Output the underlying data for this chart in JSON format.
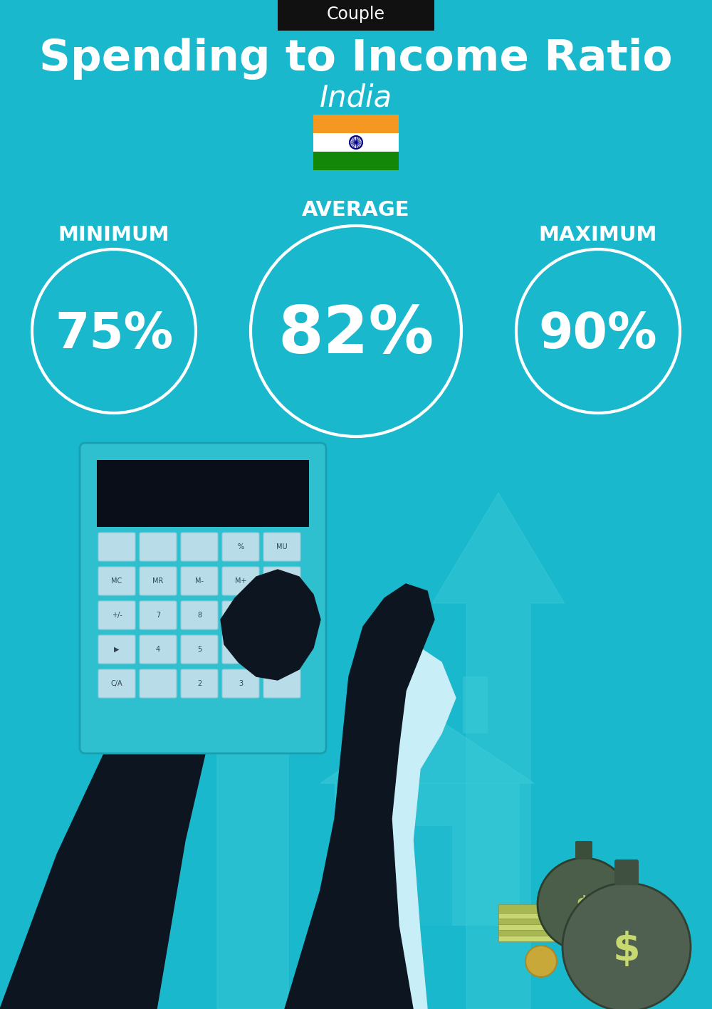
{
  "bg_color": "#1ab8cc",
  "header_bg": "#111111",
  "header_text": "Couple",
  "title": "Spending to Income Ratio",
  "subtitle": "India",
  "min_label": "MINIMUM",
  "avg_label": "AVERAGE",
  "max_label": "MAXIMUM",
  "min_value": "75%",
  "avg_value": "82%",
  "max_value": "90%",
  "circle_color": "#ffffff",
  "text_color": "#ffffff",
  "title_fontsize": 44,
  "subtitle_fontsize": 30,
  "label_fontsize": 21,
  "value_fontsize_small": 50,
  "value_fontsize_large": 66,
  "header_fontsize": 17,
  "india_flag_colors": [
    "#f59822",
    "#ffffff",
    "#138808"
  ],
  "ashoka_color": "#000080",
  "arrow_color": "#3acad8",
  "dark_color": "#0d1520",
  "calc_color": "#2fc0d0",
  "btn_color": "#b8dde8",
  "bag_color": "#5a6e5a",
  "money_color": "#c8d870",
  "cuff_color": "#c8eef8"
}
